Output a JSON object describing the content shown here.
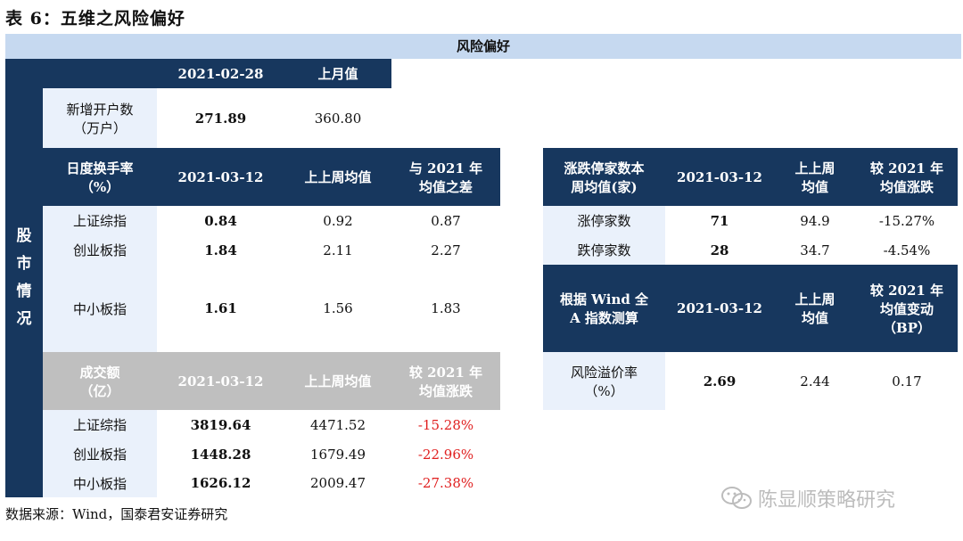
{
  "title": "表 6：五维之风险偏好",
  "band": "风险偏好",
  "side_label": [
    "股",
    "市",
    "情",
    "况"
  ],
  "left": {
    "new_accounts": {
      "head": [
        "2021-02-28",
        "上月值"
      ],
      "label": [
        "新增开户数",
        "（万户）"
      ],
      "values": [
        "271.89",
        "360.80"
      ]
    },
    "turnover": {
      "head_label": [
        "日度换手率",
        "（%）"
      ],
      "head": [
        "2021-03-12",
        "上上周均值",
        "与 2021 年",
        "均值之差"
      ],
      "rows": [
        {
          "name": "上证综指",
          "v": "0.84",
          "avg": "0.92",
          "diff": "0.87"
        },
        {
          "name": "创业板指",
          "v": "1.84",
          "avg": "2.11",
          "diff": "2.27"
        },
        {
          "name": "中小板指",
          "v": "1.61",
          "avg": "1.56",
          "diff": "1.83"
        }
      ]
    },
    "volume": {
      "head_label": [
        "成交额",
        "（亿）"
      ],
      "head": [
        "2021-03-12",
        "上上周均值",
        "较 2021 年",
        "均值涨跌"
      ],
      "rows": [
        {
          "name": "上证综指",
          "v": "3819.64",
          "avg": "4471.52",
          "diff": "-15.28%"
        },
        {
          "name": "创业板指",
          "v": "1448.28",
          "avg": "1679.49",
          "diff": "-22.96%"
        },
        {
          "name": "中小板指",
          "v": "1626.12",
          "avg": "2009.47",
          "diff": "-27.38%"
        }
      ]
    }
  },
  "right": {
    "limit": {
      "head_label": [
        "涨跌停家数本",
        "周均值(家)"
      ],
      "head": [
        "2021-03-12",
        "上上周",
        "均值",
        "较 2021 年",
        "均值涨跌"
      ],
      "rows": [
        {
          "name": "涨停家数",
          "v": "71",
          "avg": "94.9",
          "diff": "-15.27%"
        },
        {
          "name": "跌停家数",
          "v": "28",
          "avg": "34.7",
          "diff": "-4.54%"
        }
      ]
    },
    "premium": {
      "head_label": [
        "根据 Wind 全",
        "A 指数测算"
      ],
      "head": [
        "2021-03-12",
        "上上周",
        "均值",
        "较 2021 年",
        "均值变动",
        "（BP）"
      ],
      "label": [
        "风险溢价率",
        "（%）"
      ],
      "values": [
        "2.69",
        "2.44",
        "0.17"
      ]
    }
  },
  "source": "数据来源：Wind，国泰君安证券研究",
  "watermark": "陈显顺策略研究"
}
